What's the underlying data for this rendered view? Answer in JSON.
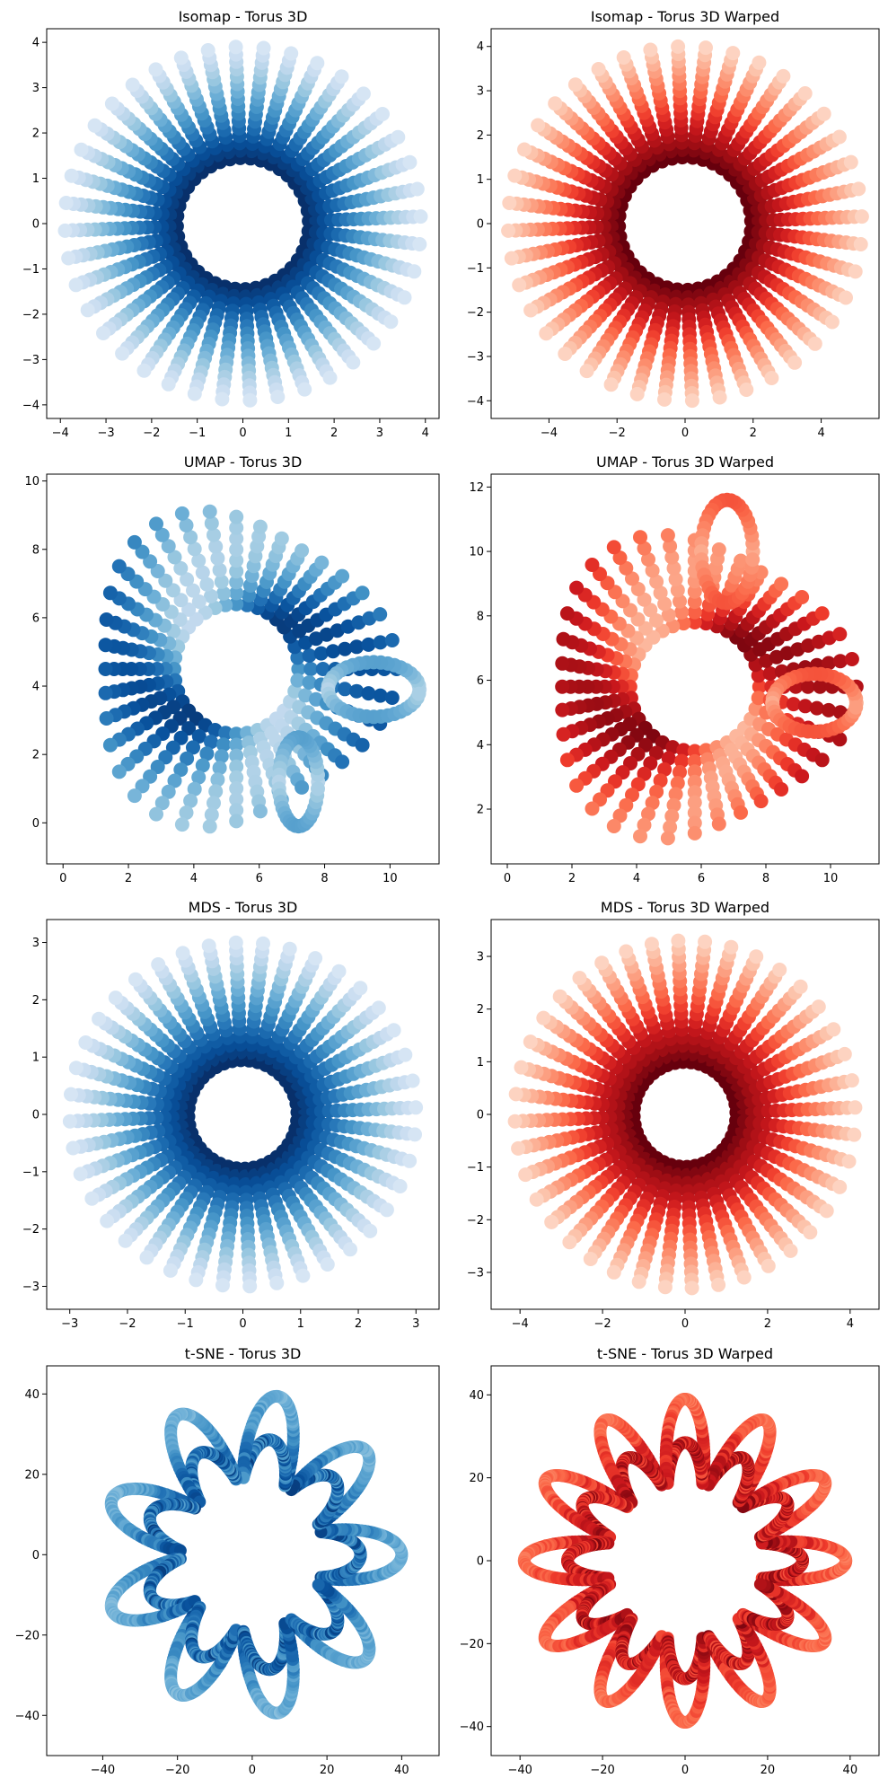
{
  "chart_data": [
    {
      "id": "isomap-torus",
      "type": "scatter",
      "title": "Isomap - Torus 3D",
      "colormap": "Blues",
      "xlim": [
        -4.3,
        4.3
      ],
      "ylim": [
        -4.3,
        4.3
      ],
      "xticks": [
        -4,
        -3,
        -2,
        -1,
        0,
        1,
        2,
        3,
        4
      ],
      "yticks": [
        -4,
        -3,
        -2,
        -1,
        0,
        1,
        2,
        3,
        4
      ],
      "shape": "radial",
      "spokes": 40,
      "inner_radius": 1.45,
      "outer_radius": 3.9,
      "stretch_x": 1.0,
      "stretch_y": 1.0,
      "center": [
        0,
        0
      ]
    },
    {
      "id": "isomap-warped",
      "type": "scatter",
      "title": "Isomap - Torus 3D Warped",
      "colormap": "Reds",
      "xlim": [
        -5.7,
        5.7
      ],
      "ylim": [
        -4.4,
        4.4
      ],
      "xticks": [
        -4,
        -2,
        0,
        2,
        4
      ],
      "yticks": [
        -4,
        -3,
        -2,
        -1,
        0,
        1,
        2,
        3,
        4
      ],
      "shape": "radial",
      "spokes": 40,
      "inner_radius": 1.5,
      "outer_radius": 4.0,
      "stretch_x": 1.3,
      "stretch_y": 1.0,
      "center": [
        0,
        0
      ]
    },
    {
      "id": "umap-torus",
      "type": "scatter",
      "title": "UMAP - Torus 3D",
      "colormap": "Blues",
      "xlim": [
        -0.5,
        11.5
      ],
      "ylim": [
        -1.2,
        10.2
      ],
      "xticks": [
        0,
        2,
        4,
        6,
        8,
        10
      ],
      "yticks": [
        0,
        2,
        4,
        6,
        8,
        10
      ],
      "shape": "umap",
      "center": [
        5.3,
        4.5
      ],
      "inner_radius": 1.9,
      "outer_radius": 4.9,
      "loops": [
        {
          "center": [
            9.5,
            3.9
          ],
          "rx": 1.4,
          "ry": 0.8
        },
        {
          "center": [
            7.2,
            1.2
          ],
          "rx": 0.6,
          "ry": 1.3
        }
      ]
    },
    {
      "id": "umap-warped",
      "type": "scatter",
      "title": "UMAP - Torus 3D Warped",
      "colormap": "Reds",
      "xlim": [
        -0.5,
        11.5
      ],
      "ylim": [
        0.3,
        12.4
      ],
      "xticks": [
        0,
        2,
        4,
        6,
        8,
        10
      ],
      "yticks": [
        2,
        4,
        6,
        8,
        10,
        12
      ],
      "shape": "umap",
      "center": [
        5.8,
        5.8
      ],
      "inner_radius": 2.0,
      "outer_radius": 5.0,
      "loops": [
        {
          "center": [
            6.8,
            10.0
          ],
          "rx": 0.8,
          "ry": 1.6
        },
        {
          "center": [
            9.5,
            5.3
          ],
          "rx": 1.3,
          "ry": 0.9
        }
      ]
    },
    {
      "id": "mds-torus",
      "type": "scatter",
      "title": "MDS - Torus 3D",
      "colormap": "Blues",
      "xlim": [
        -3.4,
        3.4
      ],
      "ylim": [
        -3.4,
        3.4
      ],
      "xticks": [
        -3,
        -2,
        -1,
        0,
        1,
        2,
        3
      ],
      "yticks": [
        -3,
        -2,
        -1,
        0,
        1,
        2,
        3
      ],
      "shape": "radial",
      "spokes": 40,
      "inner_radius": 0.95,
      "outer_radius": 3.0,
      "stretch_x": 1.0,
      "stretch_y": 1.0,
      "center": [
        0,
        0
      ]
    },
    {
      "id": "mds-warped",
      "type": "scatter",
      "title": "MDS - Torus 3D Warped",
      "colormap": "Reds",
      "xlim": [
        -4.7,
        4.7
      ],
      "ylim": [
        -3.7,
        3.7
      ],
      "xticks": [
        -4,
        -2,
        0,
        2,
        4
      ],
      "yticks": [
        -3,
        -2,
        -1,
        0,
        1,
        2,
        3
      ],
      "shape": "radial",
      "spokes": 40,
      "inner_radius": 1.0,
      "outer_radius": 3.3,
      "stretch_x": 1.25,
      "stretch_y": 1.0,
      "center": [
        0,
        0
      ]
    },
    {
      "id": "tsne-torus",
      "type": "scatter",
      "title": "t-SNE - Torus 3D",
      "colormap": "Blues",
      "xlim": [
        -55,
        50
      ],
      "ylim": [
        -50,
        47
      ],
      "xticks": [
        -40,
        -20,
        0,
        20,
        40
      ],
      "yticks": [
        -40,
        -20,
        0,
        20,
        40
      ],
      "shape": "tsne",
      "center": [
        0,
        0
      ],
      "inner_radius": 14,
      "outer_radius": 40,
      "lobes": 9
    },
    {
      "id": "tsne-warped",
      "type": "scatter",
      "title": "t-SNE - Torus 3D Warped",
      "colormap": "Reds",
      "xlim": [
        -47,
        47
      ],
      "ylim": [
        -47,
        47
      ],
      "xticks": [
        -40,
        -20,
        0,
        20,
        40
      ],
      "yticks": [
        -40,
        -20,
        0,
        20,
        40
      ],
      "shape": "tsne",
      "center": [
        0,
        0
      ],
      "inner_radius": 14,
      "outer_radius": 39,
      "lobes": 12
    }
  ]
}
